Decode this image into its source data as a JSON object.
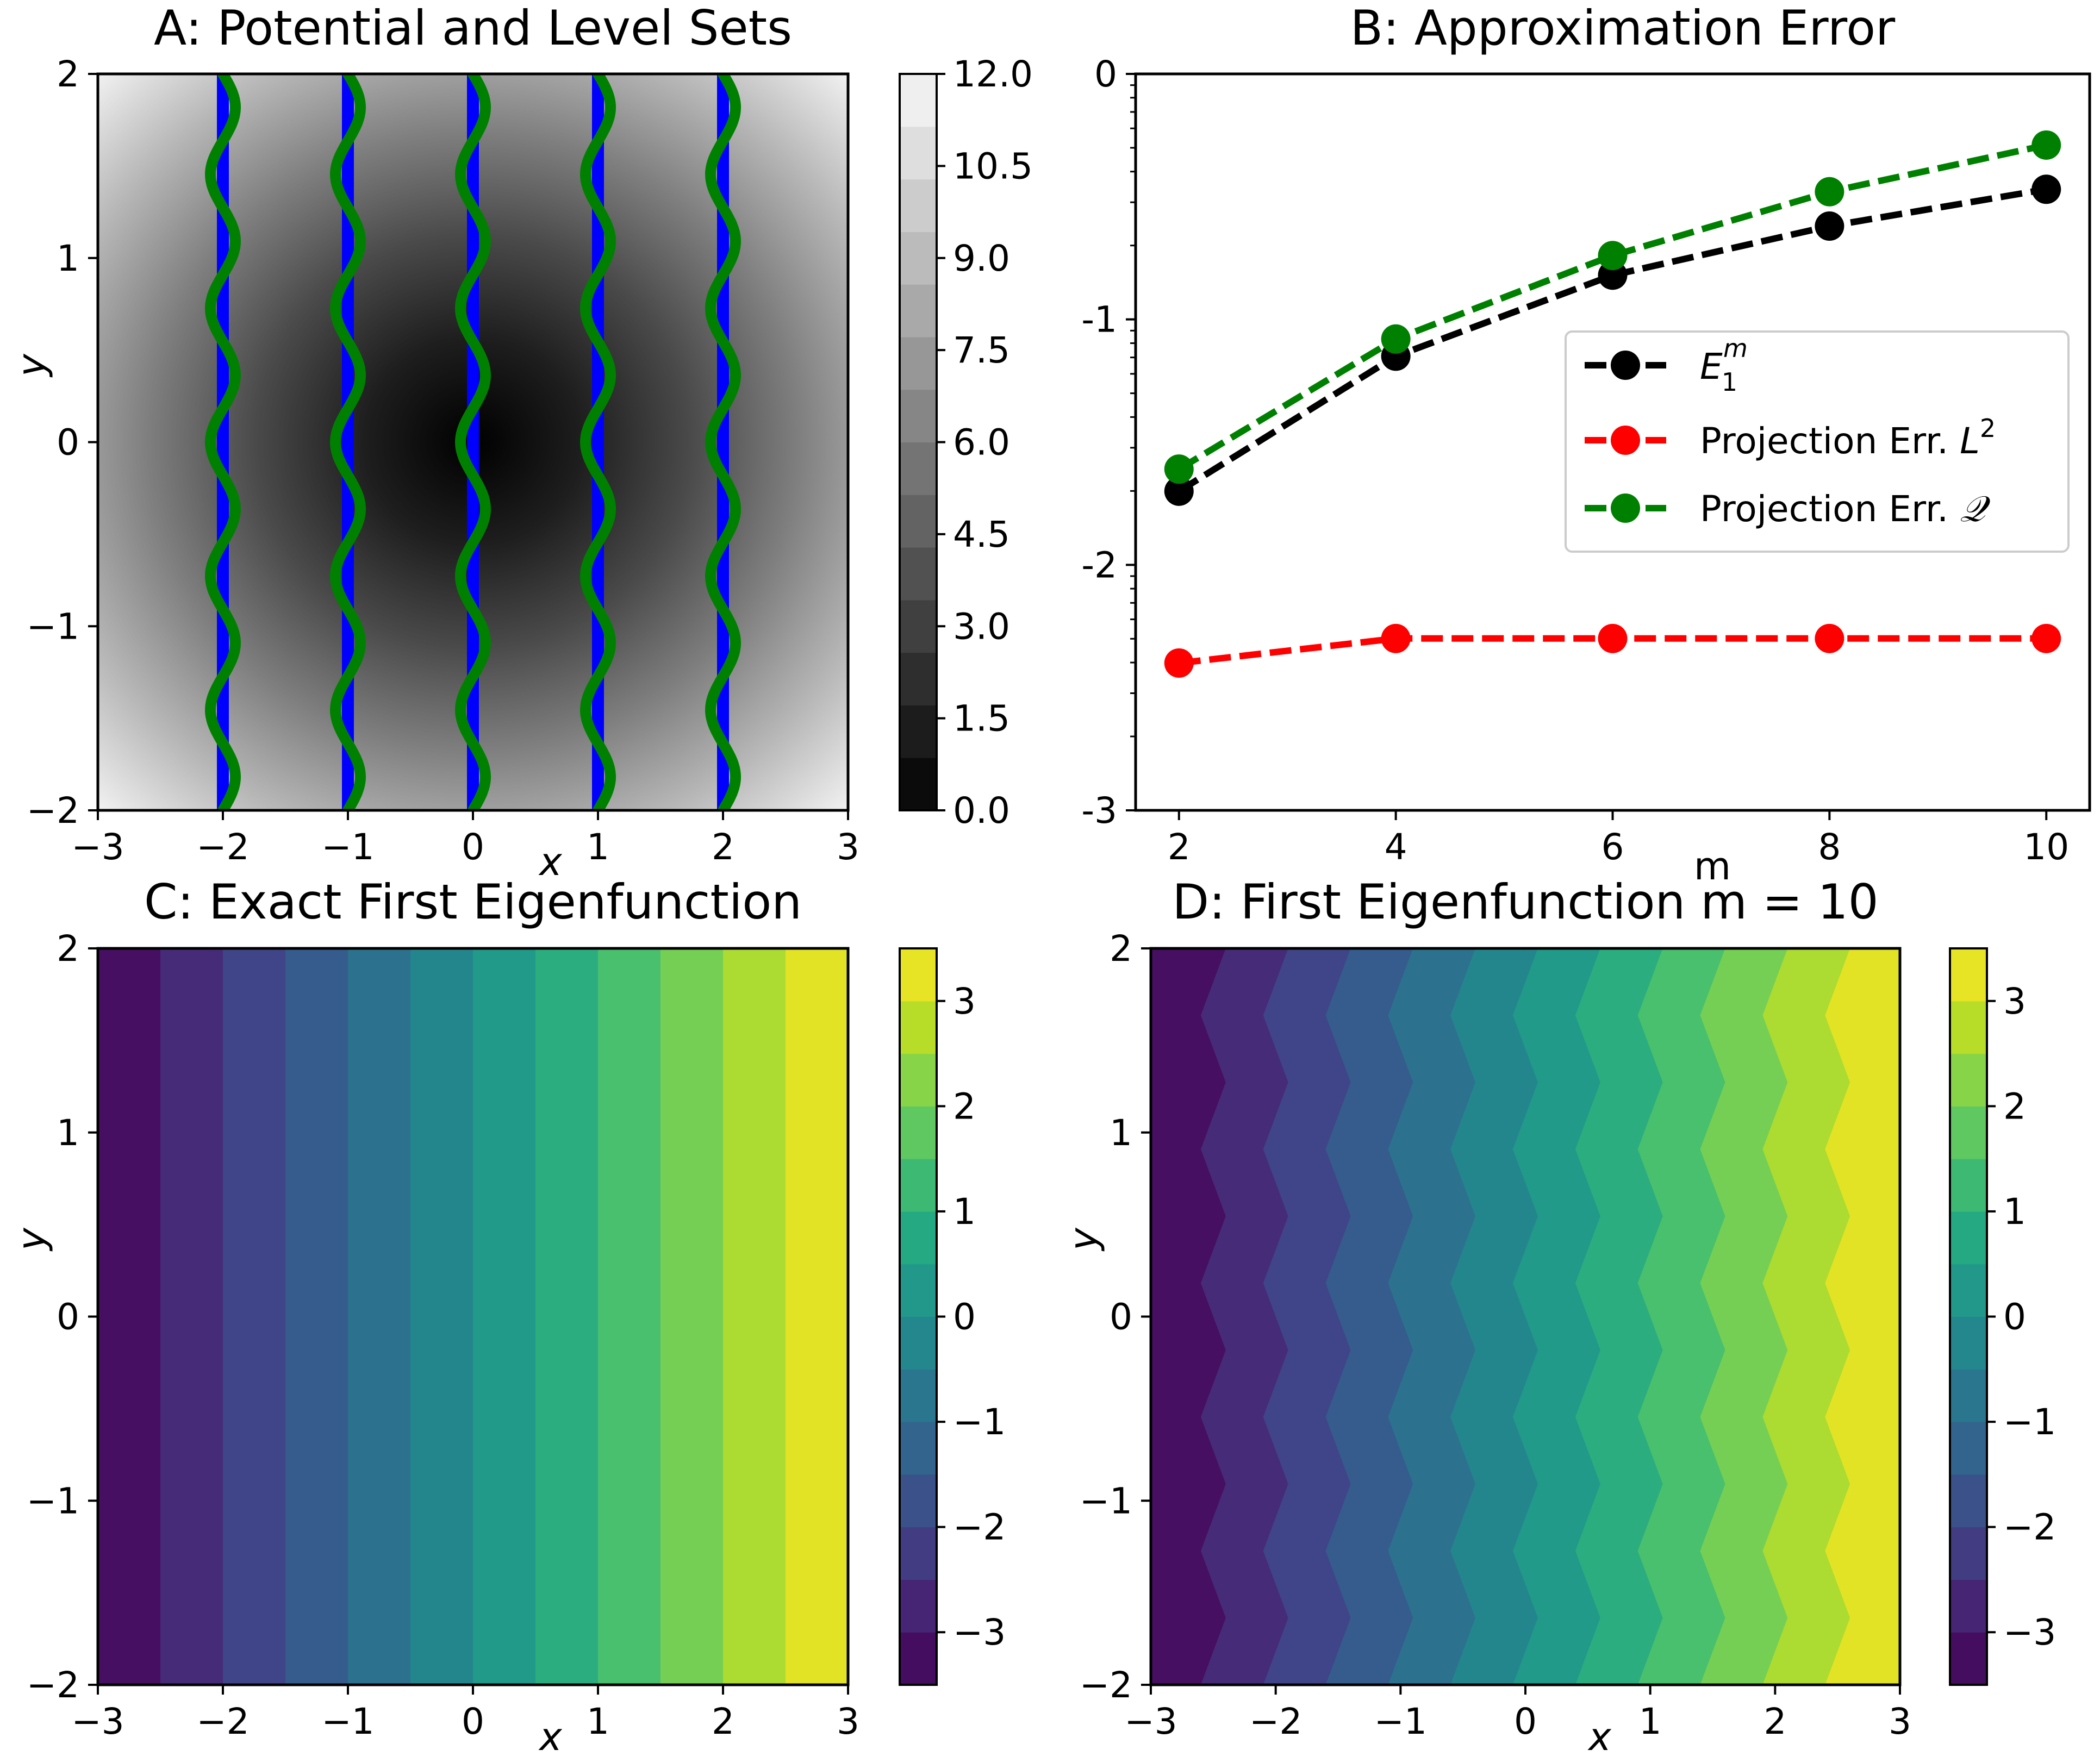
{
  "chart_data": [
    {
      "id": "A",
      "type": "contour",
      "title": "A: Potential and Level Sets",
      "xlabel": "x",
      "ylabel": "y",
      "xlim": [
        -3,
        3
      ],
      "ylim": [
        -2,
        2
      ],
      "xticks": [
        -3,
        -2,
        -1,
        0,
        1,
        2,
        3
      ],
      "xtick_labels": [
        "−3",
        "−2",
        "−1",
        "0",
        "1",
        "2",
        "3"
      ],
      "yticks": [
        -2,
        -1,
        0,
        1,
        2
      ],
      "ytick_labels": [
        "−2",
        "−1",
        "0",
        "1",
        "2"
      ],
      "colormap": "gray",
      "colorbar": {
        "range": [
          0,
          12
        ],
        "ticks": [
          0,
          1.5,
          3,
          4.5,
          6,
          7.5,
          9,
          10.5,
          12
        ],
        "tick_labels": [
          "0.0",
          "1.5",
          "3.0",
          "4.5",
          "6.0",
          "7.5",
          "9.0",
          "10.5",
          "12.0"
        ]
      },
      "level_lines": {
        "x_positions": [
          -2,
          -1,
          0,
          1,
          2
        ],
        "straight_color": "#0000ff",
        "wavy_color": "#008000",
        "wave_amplitude": 0.1,
        "wave_periods_over_y": 5.5
      }
    },
    {
      "id": "B",
      "type": "line",
      "title": "B: Approximation Error",
      "xlabel": "m",
      "ylabel": "",
      "xlim": [
        1.6,
        10.4
      ],
      "ylim": [
        -3,
        0
      ],
      "xticks": [
        2,
        4,
        6,
        8,
        10
      ],
      "xtick_labels": [
        "2",
        "4",
        "6",
        "8",
        "10"
      ],
      "yticks": [
        -3,
        -2,
        -1,
        0
      ],
      "ytick_labels": [
        "-3",
        "-2",
        "-1",
        "0"
      ],
      "legend_loc": "center-right",
      "series": [
        {
          "name": "E",
          "name_sub": "1",
          "name_sup": "m",
          "color": "#000000",
          "x": [
            2,
            4,
            6,
            8,
            10
          ],
          "y": [
            -1.7,
            -1.15,
            -0.82,
            -0.62,
            -0.47
          ]
        },
        {
          "name": "Projection Err. ",
          "name_sym": "L",
          "name_sup": "2",
          "color": "#ff0000",
          "x": [
            2,
            4,
            6,
            8,
            10
          ],
          "y": [
            -2.4,
            -2.3,
            -2.3,
            -2.3,
            -2.3
          ]
        },
        {
          "name": "Projection Err. ",
          "name_sym": "𝒬",
          "name_sup": "",
          "color": "#008000",
          "x": [
            2,
            4,
            6,
            8,
            10
          ],
          "y": [
            -1.61,
            -1.08,
            -0.74,
            -0.48,
            -0.29
          ]
        }
      ]
    },
    {
      "id": "C",
      "type": "contour",
      "title": "C: Exact First Eigenfunction",
      "xlabel": "x",
      "ylabel": "y",
      "xlim": [
        -3,
        3
      ],
      "ylim": [
        -2,
        2
      ],
      "xticks": [
        -3,
        -2,
        -1,
        0,
        1,
        2,
        3
      ],
      "xtick_labels": [
        "−3",
        "−2",
        "−1",
        "0",
        "1",
        "2",
        "3"
      ],
      "yticks": [
        -2,
        -1,
        0,
        1,
        2
      ],
      "ytick_labels": [
        "−2",
        "−1",
        "0",
        "1",
        "2"
      ],
      "colormap": "viridis",
      "band_edges_x": [
        -3,
        -2.5,
        -2,
        -1.5,
        -1,
        -0.5,
        0,
        0.5,
        1,
        1.5,
        2,
        2.5,
        3
      ],
      "colorbar": {
        "range": [
          -3.5,
          3.5
        ],
        "ticks": [
          -3,
          -2,
          -1,
          0,
          1,
          2,
          3
        ],
        "tick_labels": [
          "−3",
          "−2",
          "−1",
          "0",
          "1",
          "2",
          "3"
        ]
      }
    },
    {
      "id": "D",
      "type": "contour",
      "title": "D: First Eigenfunction m = 10",
      "xlabel": "x",
      "ylabel": "y",
      "xlim": [
        -3,
        3
      ],
      "ylim": [
        -2,
        2
      ],
      "xticks": [
        -3,
        -2,
        -1,
        0,
        1,
        2,
        3
      ],
      "xtick_labels": [
        "−3",
        "−2",
        "−1",
        "0",
        "1",
        "2",
        "3"
      ],
      "yticks": [
        -2,
        -1,
        0,
        1,
        2
      ],
      "ytick_labels": [
        "−2",
        "−1",
        "0",
        "1",
        "2"
      ],
      "colormap": "viridis",
      "band_edges_x": [
        -3,
        -2.5,
        -2,
        -1.5,
        -1,
        -0.5,
        0,
        0.5,
        1,
        1.5,
        2,
        2.5,
        3
      ],
      "wave_amplitude": 0.1,
      "wave_periods_over_y": 5.5,
      "colorbar": {
        "range": [
          -3.5,
          3.5
        ],
        "ticks": [
          -3,
          -2,
          -1,
          0,
          1,
          2,
          3
        ],
        "tick_labels": [
          "−3",
          "−2",
          "−1",
          "0",
          "1",
          "2",
          "3"
        ]
      }
    }
  ]
}
